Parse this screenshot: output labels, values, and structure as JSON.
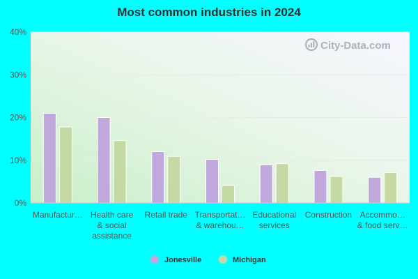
{
  "chart_data": {
    "type": "bar",
    "title": "Most common industries in 2024",
    "watermark": "City-Data.com",
    "categories": [
      [
        "Manufactur…"
      ],
      [
        "Health care",
        "& social",
        "assistance"
      ],
      [
        "Retail trade"
      ],
      [
        "Transportat…",
        "& warehou…"
      ],
      [
        "Educational",
        "services"
      ],
      [
        "Construction"
      ],
      [
        "Accommo…",
        "& food serv…"
      ]
    ],
    "series": [
      {
        "name": "Jonesville",
        "color": "#c0a8dc",
        "values": [
          21,
          20,
          12,
          10.2,
          8.9,
          7.6,
          6
        ]
      },
      {
        "name": "Michigan",
        "color": "#c4d9a4",
        "values": [
          17.8,
          14.6,
          10.9,
          4,
          9.2,
          6.2,
          7.1
        ]
      }
    ],
    "ylim": [
      0,
      40
    ],
    "yticks": [
      0,
      10,
      20,
      30,
      40
    ],
    "ytick_labels": [
      "0%",
      "10%",
      "20%",
      "30%",
      "40%"
    ],
    "xlabel": "",
    "ylabel": "",
    "grid": true,
    "legend": "bottom-center"
  }
}
